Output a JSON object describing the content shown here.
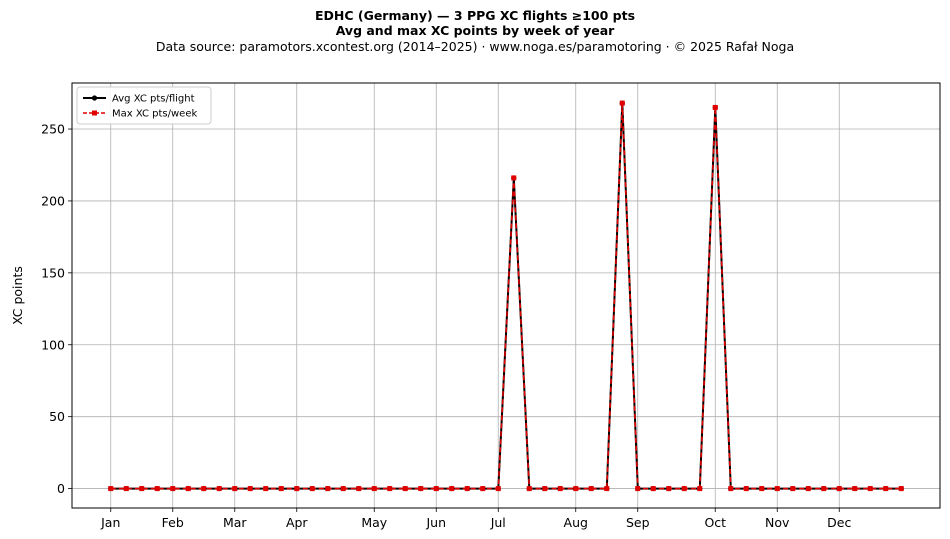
{
  "header": {
    "title": "EDHC (Germany)  —  3 PPG XC flights ≥100 pts",
    "subtitle": "Avg and max XC points by week of year",
    "source": "Data source: paramotors.xcontest.org (2014–2025)  ·  www.noga.es/paramotoring  ·  © 2025 Rafał Noga"
  },
  "chart_data": {
    "type": "line",
    "title": "EDHC (Germany)  —  3 PPG XC flights ≥100 pts",
    "subtitle": "Avg and max XC points by week of year",
    "xlabel": "",
    "ylabel": "XC points",
    "x": [
      1,
      2,
      3,
      4,
      5,
      6,
      7,
      8,
      9,
      10,
      11,
      12,
      13,
      14,
      15,
      16,
      17,
      18,
      19,
      20,
      21,
      22,
      23,
      24,
      25,
      26,
      27,
      28,
      29,
      30,
      31,
      32,
      33,
      34,
      35,
      36,
      37,
      38,
      39,
      40,
      41,
      42,
      43,
      44,
      45,
      46,
      47,
      48,
      49,
      50,
      51,
      52
    ],
    "xticks": [
      {
        "label": "Jan",
        "week": 1
      },
      {
        "label": "Feb",
        "week": 5
      },
      {
        "label": "Mar",
        "week": 9
      },
      {
        "label": "Apr",
        "week": 13
      },
      {
        "label": "May",
        "week": 18
      },
      {
        "label": "Jun",
        "week": 22
      },
      {
        "label": "Jul",
        "week": 26
      },
      {
        "label": "Aug",
        "week": 31
      },
      {
        "label": "Sep",
        "week": 35
      },
      {
        "label": "Oct",
        "week": 40
      },
      {
        "label": "Nov",
        "week": 44
      },
      {
        "label": "Dec",
        "week": 48
      }
    ],
    "yticks": [
      0,
      50,
      100,
      150,
      200,
      250
    ],
    "xlim": [
      -1.5,
      54.5
    ],
    "ylim": [
      -13.5,
      282
    ],
    "grid": true,
    "legend_position": "top-left",
    "series": [
      {
        "name": "Avg XC pts/flight",
        "color": "#000000",
        "style": "solid-circle",
        "values": [
          0,
          0,
          0,
          0,
          0,
          0,
          0,
          0,
          0,
          0,
          0,
          0,
          0,
          0,
          0,
          0,
          0,
          0,
          0,
          0,
          0,
          0,
          0,
          0,
          0,
          0,
          216,
          0,
          0,
          0,
          0,
          0,
          0,
          268,
          0,
          0,
          0,
          0,
          0,
          265,
          0,
          0,
          0,
          0,
          0,
          0,
          0,
          0,
          0,
          0,
          0,
          0
        ]
      },
      {
        "name": "Max XC pts/week",
        "color": "#e00000",
        "style": "dashed-square",
        "values": [
          0,
          0,
          0,
          0,
          0,
          0,
          0,
          0,
          0,
          0,
          0,
          0,
          0,
          0,
          0,
          0,
          0,
          0,
          0,
          0,
          0,
          0,
          0,
          0,
          0,
          0,
          216,
          0,
          0,
          0,
          0,
          0,
          0,
          268,
          0,
          0,
          0,
          0,
          0,
          265,
          0,
          0,
          0,
          0,
          0,
          0,
          0,
          0,
          0,
          0,
          0,
          0
        ]
      }
    ]
  }
}
